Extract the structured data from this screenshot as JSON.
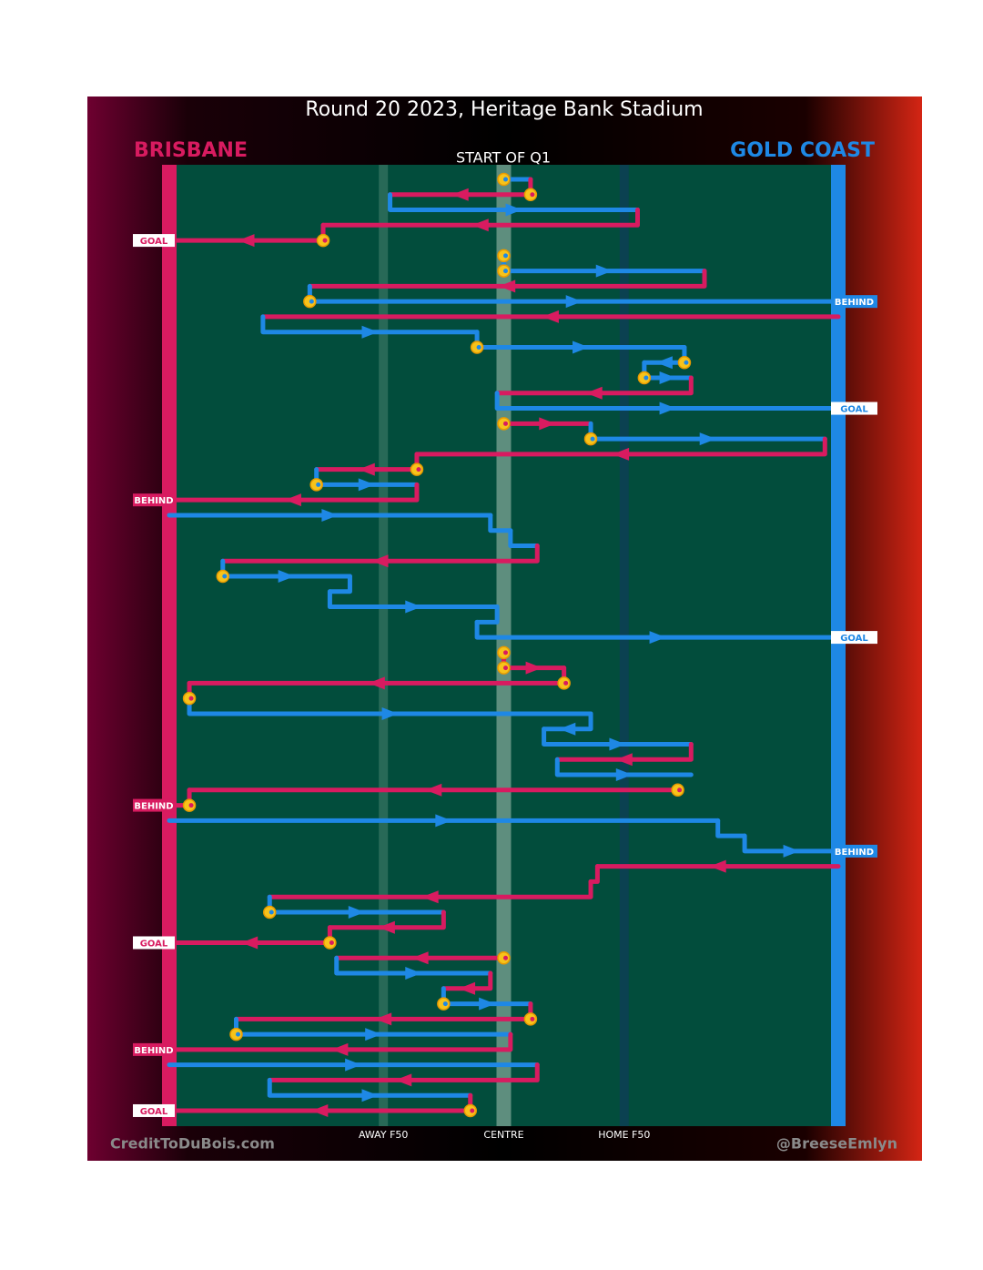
{
  "title": "Round 20 2023, Heritage Bank Stadium",
  "start_label": "START OF Q1",
  "teams": [
    {
      "name": "BRISBANE",
      "color": "#d81b60"
    },
    {
      "name": "GOLD COAST",
      "color": "#1e88e5"
    }
  ],
  "field_lines": [
    {
      "label": "AWAY F50",
      "x": 32
    },
    {
      "label": "CENTRE",
      "x": 50
    },
    {
      "label": "HOME F50",
      "x": 68
    }
  ],
  "footer_left": "CreditToDuBois.com",
  "footer_right": "@BreeseEmlyn",
  "moves": [
    {
      "team": 1,
      "from": 50,
      "to": 54,
      "marker": true
    },
    {
      "team": 0,
      "from": 54,
      "to": 33,
      "marker": true
    },
    {
      "team": 1,
      "from": 33,
      "to": 70
    },
    {
      "team": 0,
      "from": 70,
      "to": 23
    },
    {
      "team": 0,
      "from": 23,
      "to": 0,
      "marker": true,
      "result": "GOAL"
    },
    {
      "team": 1,
      "from": 50,
      "to": 50,
      "marker": true
    },
    {
      "team": 1,
      "from": 50,
      "to": 80,
      "marker": true
    },
    {
      "team": 0,
      "from": 80,
      "to": 21
    },
    {
      "team": 1,
      "from": 21,
      "to": 100,
      "marker": true,
      "result": "BEHIND"
    },
    {
      "team": 0,
      "from": 100,
      "to": 14
    },
    {
      "team": 1,
      "from": 14,
      "to": 46
    },
    {
      "team": 1,
      "from": 46,
      "to": 77,
      "marker": true
    },
    {
      "team": 1,
      "from": 77,
      "to": 71,
      "marker": true
    },
    {
      "team": 1,
      "from": 71,
      "to": 78,
      "marker": true
    },
    {
      "team": 0,
      "from": 78,
      "to": 49
    },
    {
      "team": 1,
      "from": 49,
      "to": 100,
      "result": "GOAL"
    },
    {
      "team": 0,
      "from": 50,
      "to": 63,
      "marker": true
    },
    {
      "team": 1,
      "from": 63,
      "to": 98,
      "marker": true
    },
    {
      "team": 0,
      "from": 98,
      "to": 37
    },
    {
      "team": 0,
      "from": 37,
      "to": 22,
      "marker": true
    },
    {
      "team": 1,
      "from": 22,
      "to": 37,
      "marker": true
    },
    {
      "team": 0,
      "from": 37,
      "to": 0,
      "result": "BEHIND"
    },
    {
      "team": 1,
      "from": 0,
      "to": 48
    },
    {
      "team": 1,
      "from": 48,
      "to": 51
    },
    {
      "team": 1,
      "from": 51,
      "to": 55
    },
    {
      "team": 0,
      "from": 55,
      "to": 8
    },
    {
      "team": 1,
      "from": 8,
      "to": 27,
      "marker": true
    },
    {
      "team": 1,
      "from": 27,
      "to": 24
    },
    {
      "team": 1,
      "from": 24,
      "to": 49
    },
    {
      "team": 1,
      "from": 49,
      "to": 46
    },
    {
      "team": 1,
      "from": 46,
      "to": 100,
      "result": "GOAL"
    },
    {
      "team": 0,
      "from": 50,
      "to": 50,
      "marker": true
    },
    {
      "team": 0,
      "from": 50,
      "to": 59,
      "marker": true
    },
    {
      "team": 0,
      "from": 59,
      "to": 3,
      "marker": true
    },
    {
      "team": 0,
      "from": 3,
      "to": 3,
      "marker": true
    },
    {
      "team": 1,
      "from": 3,
      "to": 63
    },
    {
      "team": 1,
      "from": 63,
      "to": 56
    },
    {
      "team": 1,
      "from": 56,
      "to": 78
    },
    {
      "team": 0,
      "from": 78,
      "to": 58
    },
    {
      "team": 1,
      "from": 58,
      "to": 78
    },
    {
      "team": 0,
      "from": 76,
      "to": 3,
      "marker": true
    },
    {
      "team": 0,
      "from": 3,
      "to": 0,
      "marker": true,
      "result": "BEHIND"
    },
    {
      "team": 1,
      "from": 0,
      "to": 82
    },
    {
      "team": 1,
      "from": 82,
      "to": 86
    },
    {
      "team": 1,
      "from": 86,
      "to": 100,
      "result": "BEHIND"
    },
    {
      "team": 0,
      "from": 100,
      "to": 64
    },
    {
      "team": 0,
      "from": 64,
      "to": 63
    },
    {
      "team": 0,
      "from": 63,
      "to": 15
    },
    {
      "team": 1,
      "from": 15,
      "to": 41,
      "marker": true
    },
    {
      "team": 0,
      "from": 41,
      "to": 24
    },
    {
      "team": 0,
      "from": 24,
      "to": 0,
      "marker": true,
      "result": "GOAL"
    },
    {
      "team": 0,
      "from": 50,
      "to": 25,
      "marker": true
    },
    {
      "team": 1,
      "from": 25,
      "to": 48
    },
    {
      "team": 0,
      "from": 48,
      "to": 41
    },
    {
      "team": 1,
      "from": 41,
      "to": 54,
      "marker": true
    },
    {
      "team": 0,
      "from": 54,
      "to": 10,
      "marker": true
    },
    {
      "team": 1,
      "from": 10,
      "to": 51,
      "marker": true
    },
    {
      "team": 0,
      "from": 51,
      "to": 0,
      "result": "BEHIND"
    },
    {
      "team": 1,
      "from": 0,
      "to": 55
    },
    {
      "team": 0,
      "from": 55,
      "to": 15
    },
    {
      "team": 1,
      "from": 15,
      "to": 45
    },
    {
      "team": 0,
      "from": 45,
      "to": 0,
      "marker": true,
      "result": "GOAL"
    }
  ]
}
